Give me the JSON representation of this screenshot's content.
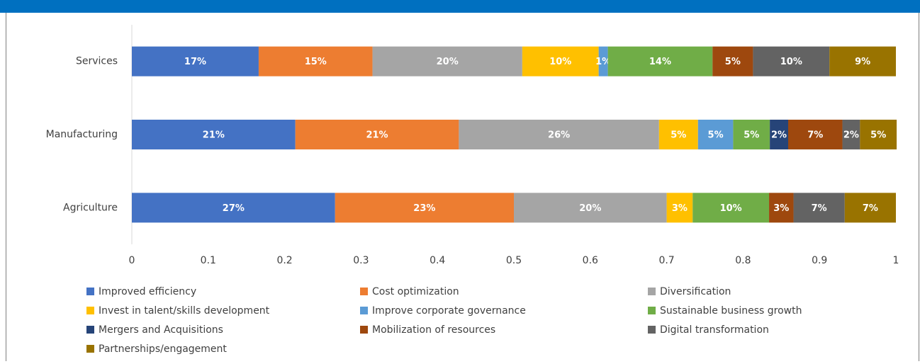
{
  "chart_data": {
    "type": "stacked_bar_horizontal",
    "categories": [
      "Services",
      "Manufacturing",
      "Agriculture"
    ],
    "xlim": [
      0,
      1
    ],
    "xticks": [
      0,
      0.1,
      0.2,
      0.3,
      0.4,
      0.5,
      0.6,
      0.7,
      0.8,
      0.9,
      1
    ],
    "legend": "bottom",
    "series": [
      {
        "name": "Improved efficiency",
        "color": "#4472c4",
        "values": [
          0.166,
          0.214,
          0.266
        ],
        "value_labels": [
          "17%",
          "21%",
          "27%"
        ]
      },
      {
        "name": "Cost optimization",
        "color": "#ed7d31",
        "values": [
          0.149,
          0.214,
          0.234
        ],
        "value_labels": [
          "15%",
          "21%",
          "23%"
        ]
      },
      {
        "name": "Diversification",
        "color": "#a5a5a5",
        "values": [
          0.196,
          0.262,
          0.2
        ],
        "value_labels": [
          "20%",
          "26%",
          "20%"
        ]
      },
      {
        "name": "Invest in talent/skills development",
        "color": "#ffc000",
        "values": [
          0.1,
          0.051,
          0.034
        ],
        "value_labels": [
          "10%",
          "5%",
          "3%"
        ]
      },
      {
        "name": "Improve corporate governance",
        "color": "#5b9bd5",
        "values": [
          0.012,
          0.046,
          null
        ],
        "value_labels": [
          "1%",
          "5%",
          null
        ]
      },
      {
        "name": "Sustainable business growth",
        "color": "#70ad47",
        "values": [
          0.137,
          0.048,
          0.1
        ],
        "value_labels": [
          "14%",
          "5%",
          "10%"
        ]
      },
      {
        "name": "Mergers and Acquisitions",
        "color": "#264478",
        "values": [
          null,
          0.024,
          null
        ],
        "value_labels": [
          null,
          "2%",
          null
        ]
      },
      {
        "name": "Mobilization of resources",
        "color": "#9e480e",
        "values": [
          0.053,
          0.071,
          0.032
        ],
        "value_labels": [
          "5%",
          "7%",
          "3%"
        ]
      },
      {
        "name": "Digital transformation",
        "color": "#636363",
        "values": [
          0.1,
          0.023,
          0.067
        ],
        "value_labels": [
          "10%",
          "2%",
          "7%"
        ]
      },
      {
        "name": "Partnerships/engagement",
        "color": "#997300",
        "values": [
          0.087,
          0.048,
          0.067
        ],
        "value_labels": [
          "9%",
          "5%",
          "7%"
        ]
      }
    ]
  }
}
